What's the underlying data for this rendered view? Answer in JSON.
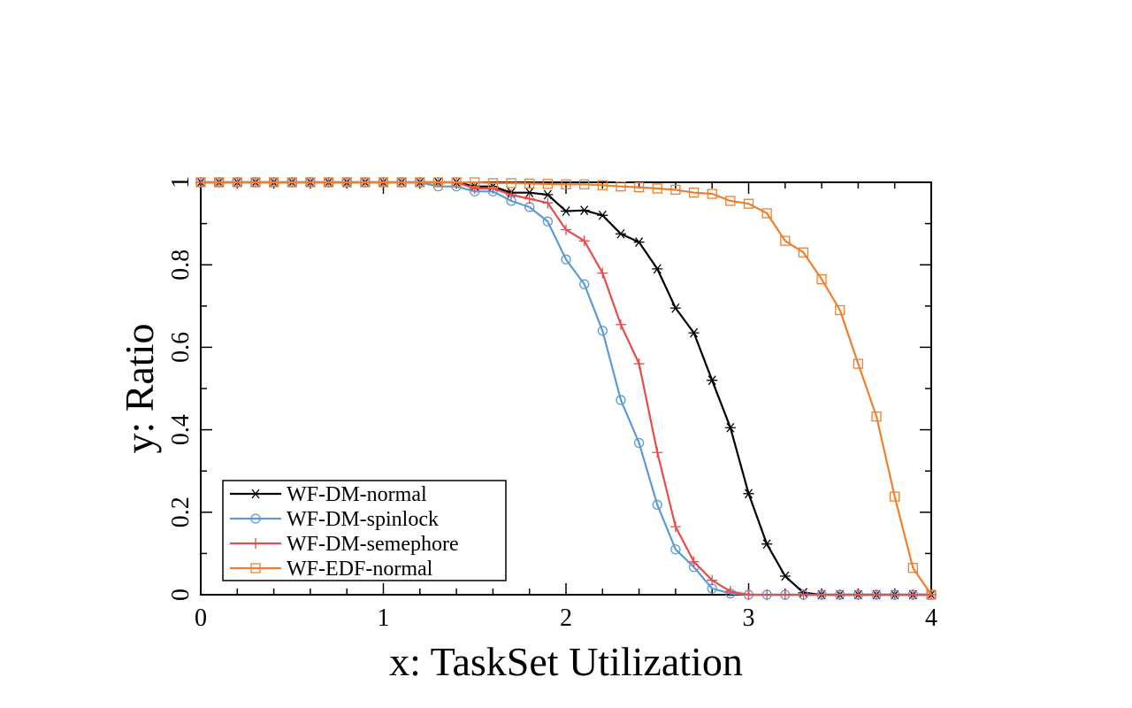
{
  "chart_data": {
    "type": "line",
    "xlabel": "x: TaskSet Utilization",
    "ylabel": "y: Ratio",
    "xlim": [
      0,
      4
    ],
    "ylim": [
      0,
      1
    ],
    "x_ticks": [
      "0",
      "1",
      "2",
      "3",
      "4"
    ],
    "y_ticks": [
      "0",
      "0.2",
      "0.4",
      "0.6",
      "0.8",
      "1"
    ],
    "grid": false,
    "legend_position": "bottom-left",
    "x": [
      0,
      0.1,
      0.2,
      0.3,
      0.4,
      0.5,
      0.6,
      0.7,
      0.8,
      0.9,
      1.0,
      1.1,
      1.2,
      1.3,
      1.4,
      1.5,
      1.6,
      1.7,
      1.8,
      1.9,
      2.0,
      2.1,
      2.2,
      2.3,
      2.4,
      2.5,
      2.6,
      2.7,
      2.8,
      2.9,
      3.0,
      3.1,
      3.2,
      3.3,
      3.4,
      3.5,
      3.6,
      3.7,
      3.8,
      3.9,
      4.0
    ],
    "series": [
      {
        "name": "WF-DM-normal",
        "color": "#000000",
        "marker": "asterisk",
        "values": [
          1,
          1,
          1,
          1,
          1,
          1,
          1,
          1,
          1,
          1,
          1,
          1,
          1,
          1,
          1,
          0.99,
          0.99,
          0.975,
          0.975,
          0.97,
          0.93,
          0.932,
          0.92,
          0.875,
          0.855,
          0.79,
          0.695,
          0.635,
          0.52,
          0.405,
          0.245,
          0.123,
          0.045,
          0.005,
          0,
          0,
          0,
          0,
          0,
          0,
          0
        ]
      },
      {
        "name": "WF-DM-spinlock",
        "color": "#5b9bd5",
        "marker": "circle",
        "values": [
          1,
          1,
          1,
          1,
          1,
          1,
          1,
          1,
          1,
          1,
          1,
          1,
          1,
          0.99,
          0.99,
          0.978,
          0.978,
          0.955,
          0.94,
          0.905,
          0.813,
          0.753,
          0.64,
          0.472,
          0.368,
          0.218,
          0.11,
          0.067,
          0.015,
          0.003,
          0,
          0,
          0,
          0,
          0,
          0,
          0,
          0,
          0,
          0,
          0
        ]
      },
      {
        "name": "WF-DM-semephore",
        "color": "#e84c4c",
        "marker": "plus",
        "values": [
          1,
          1,
          1,
          1,
          1,
          1,
          1,
          1,
          1,
          1,
          1,
          1,
          1,
          1,
          1,
          0.985,
          0.985,
          0.97,
          0.96,
          0.95,
          0.885,
          0.858,
          0.78,
          0.655,
          0.56,
          0.345,
          0.165,
          0.08,
          0.035,
          0.008,
          0,
          0,
          0,
          0,
          0,
          0,
          0,
          0,
          0,
          0,
          0
        ]
      },
      {
        "name": "WF-EDF-normal",
        "color": "#f07f2d",
        "marker": "square",
        "values": [
          1,
          1,
          1,
          1,
          1,
          1,
          1,
          1,
          1,
          1,
          1,
          1,
          1,
          1,
          1,
          1,
          0.998,
          0.998,
          0.997,
          0.996,
          0.995,
          0.995,
          0.993,
          0.99,
          0.988,
          0.985,
          0.982,
          0.975,
          0.972,
          0.955,
          0.948,
          0.925,
          0.858,
          0.83,
          0.765,
          0.69,
          0.56,
          0.432,
          0.238,
          0.065,
          0
        ]
      }
    ]
  }
}
